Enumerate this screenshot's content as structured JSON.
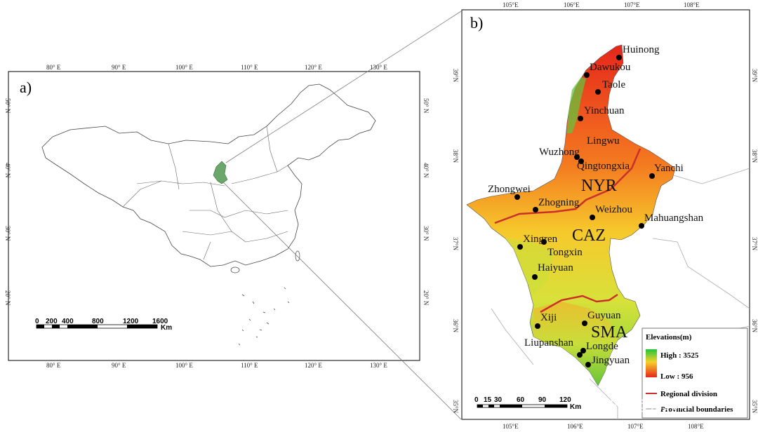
{
  "panel_a": {
    "label": "a)",
    "top_ticks": [
      "80° E",
      "90° E",
      "100° E",
      "110° E",
      "120° E",
      "130° E"
    ],
    "bottom_ticks": [
      "80° E",
      "90° E",
      "100° E",
      "110° E",
      "120° E",
      "130° E"
    ],
    "left_ticks": [
      "50° N",
      "40° N",
      "30° N",
      "20° N"
    ],
    "right_ticks": [
      "50° N",
      "40° N",
      "30° N",
      "20° N"
    ],
    "scale_labels": [
      "0",
      "200",
      "400",
      "800",
      "1200",
      "1600"
    ],
    "scale_unit": "Km"
  },
  "panel_b": {
    "label": "b)",
    "top_ticks": [
      "105°E",
      "106°E",
      "107°E",
      "108°E"
    ],
    "bottom_ticks": [
      "105°E",
      "106°E",
      "107°E",
      "108°E"
    ],
    "left_ticks": [
      "39°N",
      "38°N",
      "37°N",
      "36°N",
      "35°N"
    ],
    "right_ticks": [
      "39°N",
      "38°N",
      "37°N",
      "36°N",
      "35°N"
    ],
    "cities": [
      "Huinong",
      "Dawukou",
      "Taole",
      "Yinchuan",
      "Lingwu",
      "Wuzhong",
      "Qingtongxia",
      "Yanchi",
      "Zhongwei",
      "Zhogning",
      "Weizhou",
      "Mahuangshan",
      "Xingren",
      "Tongxin",
      "Haiyuan",
      "Xiji",
      "Guyuan",
      "Liupanshan",
      "Longde",
      "Jingyuan"
    ],
    "regions": [
      "NYR",
      "CAZ",
      "SMA"
    ],
    "legend": {
      "title": "Elevations(m)",
      "high": "High : 3525",
      "low": "Low : 956",
      "division": "Regional division",
      "boundaries": "Provincial boundaries"
    },
    "scale_labels": [
      "0",
      "15",
      "30",
      "60",
      "90",
      "120"
    ],
    "scale_unit": "Km",
    "watermark": "知乎 @Jason"
  },
  "colors": {
    "ningxia_fill": "#6aa86a",
    "division_line": "#d9452a",
    "high": "#2ecc40",
    "low": "#e82a1a"
  }
}
